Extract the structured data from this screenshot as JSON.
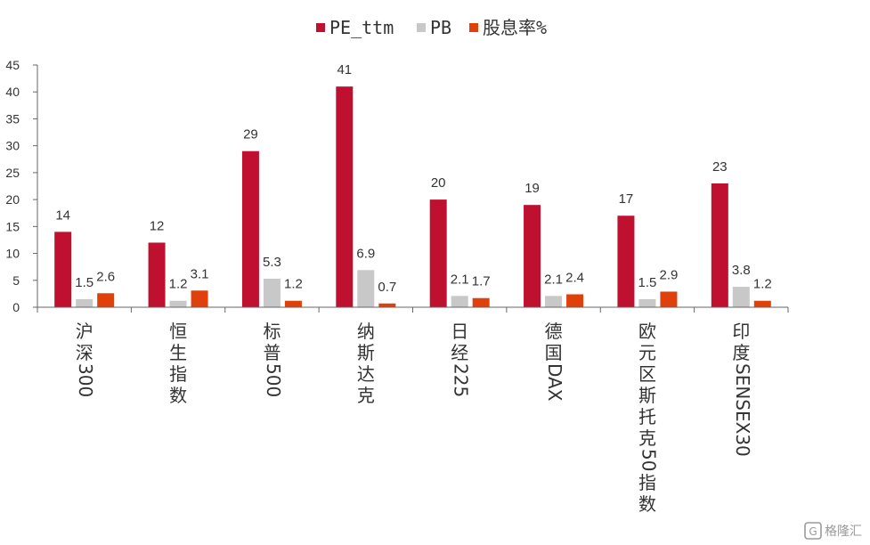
{
  "chart_data": {
    "type": "bar",
    "categories": [
      "沪深300",
      "恒生指数",
      "标普500",
      "纳斯达克",
      "日经225",
      "德国DAX",
      "欧元区斯托克50指数",
      "印度SENSEX30"
    ],
    "series": [
      {
        "name": "PE_ttm",
        "color": "#c0102f",
        "values": [
          14,
          12,
          29,
          41,
          20,
          19,
          17,
          23
        ]
      },
      {
        "name": "PB",
        "color": "#c8c8c8",
        "values": [
          1.5,
          1.2,
          5.3,
          6.9,
          2.1,
          2.1,
          1.5,
          3.8
        ]
      },
      {
        "name": "股息率%",
        "color": "#e0400a",
        "values": [
          2.6,
          3.1,
          1.2,
          0.7,
          1.7,
          2.4,
          2.9,
          1.2
        ]
      }
    ],
    "ylim": [
      0,
      45
    ],
    "yticks": [
      0,
      5,
      10,
      15,
      20,
      25,
      30,
      35,
      40,
      45
    ],
    "legend_position": "top-center",
    "grid": false
  },
  "watermark": {
    "text": "格隆汇"
  }
}
